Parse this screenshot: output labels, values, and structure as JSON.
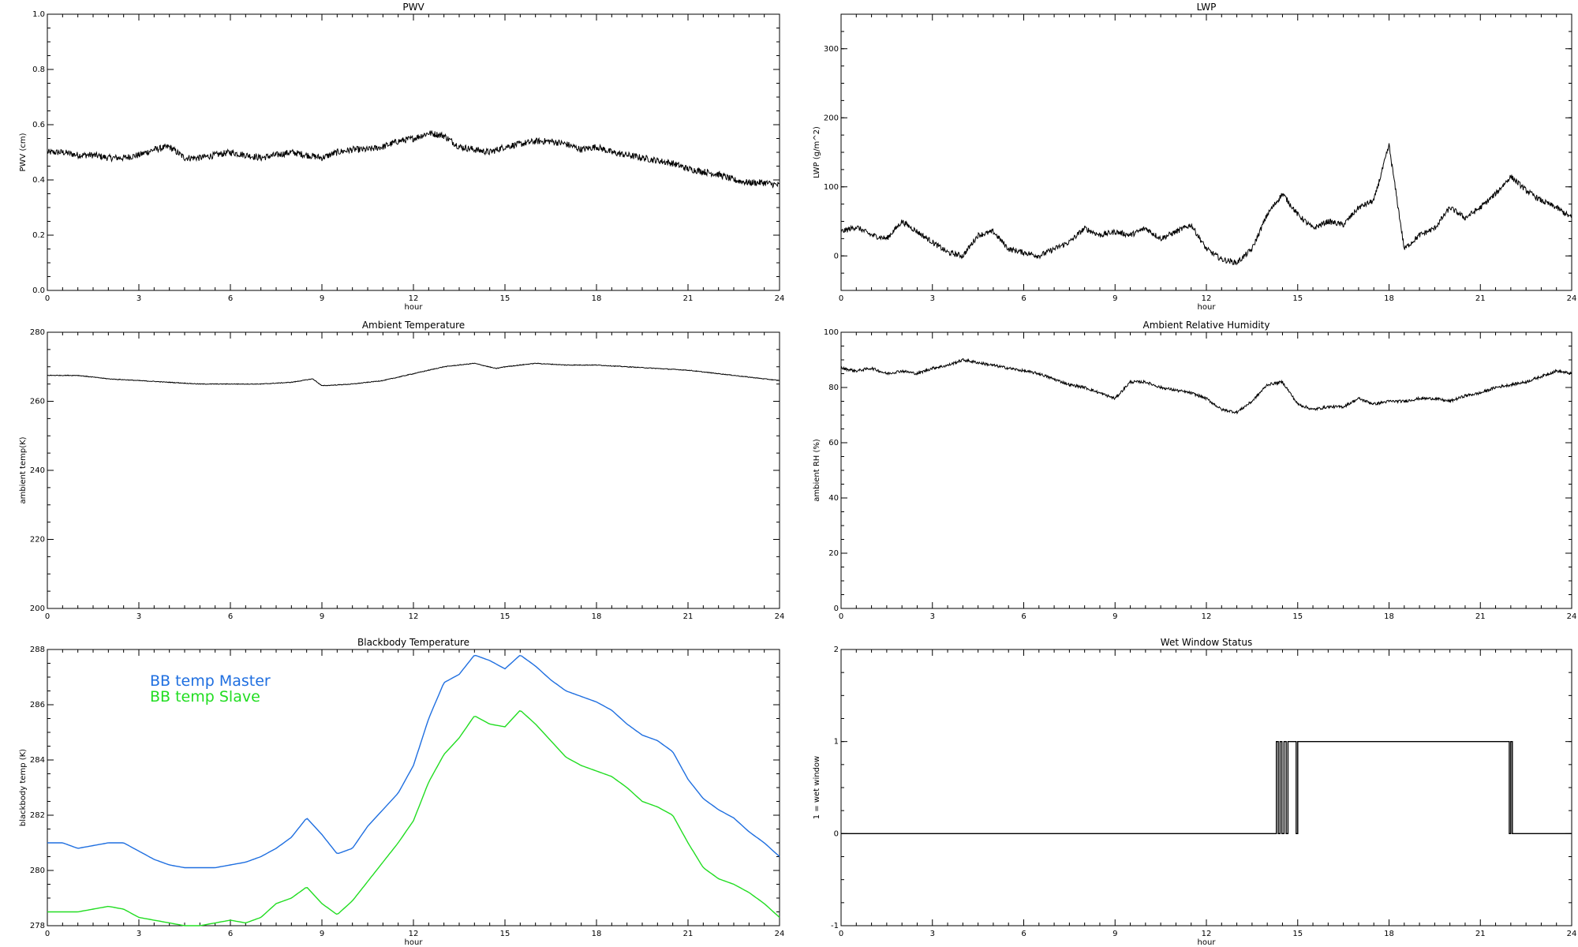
{
  "chart_data": [
    {
      "type": "line",
      "title": "PWV",
      "xlabel": "hour",
      "ylabel": "PWV (cm)",
      "xlim": [
        0,
        24
      ],
      "ylim": [
        0.0,
        1.0
      ],
      "xticks": [
        "0",
        "3",
        "6",
        "9",
        "12",
        "15",
        "18",
        "21",
        "24"
      ],
      "yticks": [
        "0.0",
        "0.2",
        "0.4",
        "0.6",
        "0.8",
        "1.0"
      ],
      "series": [
        {
          "color": "#000000",
          "noise": 0.012,
          "x": [
            0,
            0.5,
            1,
            1.5,
            2,
            2.5,
            3,
            3.5,
            4,
            4.5,
            5,
            5.5,
            6,
            6.5,
            7,
            7.5,
            8,
            8.5,
            9,
            9.5,
            10,
            10.5,
            11,
            11.5,
            12,
            12.5,
            13,
            13.5,
            14,
            14.5,
            15,
            15.5,
            16,
            16.5,
            17,
            17.5,
            18,
            18.5,
            19,
            19.5,
            20,
            20.5,
            21,
            21.5,
            22,
            22.5,
            23,
            23.5,
            24
          ],
          "y": [
            0.5,
            0.5,
            0.49,
            0.49,
            0.48,
            0.48,
            0.49,
            0.51,
            0.52,
            0.48,
            0.48,
            0.49,
            0.5,
            0.49,
            0.48,
            0.49,
            0.5,
            0.49,
            0.48,
            0.5,
            0.51,
            0.51,
            0.52,
            0.54,
            0.55,
            0.57,
            0.56,
            0.52,
            0.51,
            0.5,
            0.52,
            0.53,
            0.54,
            0.54,
            0.53,
            0.51,
            0.52,
            0.5,
            0.49,
            0.48,
            0.47,
            0.46,
            0.44,
            0.43,
            0.42,
            0.4,
            0.39,
            0.39,
            0.38
          ]
        }
      ]
    },
    {
      "type": "line",
      "title": "LWP",
      "xlabel": "hour",
      "ylabel": "LWP (g/m^2)",
      "xlim": [
        0,
        24
      ],
      "ylim": [
        -50,
        350
      ],
      "xticks": [
        "0",
        "3",
        "6",
        "9",
        "12",
        "15",
        "18",
        "21",
        "24"
      ],
      "yticks": [
        "0",
        "100",
        "200",
        "300"
      ],
      "series": [
        {
          "color": "#000000",
          "noise": 4,
          "x": [
            0,
            0.5,
            1,
            1.5,
            2,
            2.5,
            3,
            3.5,
            4,
            4.5,
            5,
            5.5,
            6,
            6.5,
            7,
            7.5,
            8,
            8.5,
            9,
            9.5,
            10,
            10.5,
            11,
            11.5,
            12,
            12.5,
            13,
            13.5,
            14,
            14.5,
            15,
            15.5,
            16,
            16.5,
            17,
            17.5,
            18,
            18.5,
            19,
            19.5,
            20,
            20.5,
            21,
            21.5,
            22,
            22.5,
            23,
            23.5,
            24
          ],
          "y": [
            35,
            42,
            30,
            25,
            50,
            35,
            20,
            5,
            0,
            30,
            35,
            10,
            5,
            0,
            10,
            20,
            40,
            30,
            35,
            30,
            40,
            25,
            35,
            45,
            10,
            -5,
            -10,
            10,
            60,
            90,
            60,
            40,
            50,
            45,
            70,
            80,
            160,
            10,
            30,
            40,
            70,
            55,
            70,
            90,
            115,
            95,
            80,
            70,
            55
          ]
        }
      ]
    },
    {
      "type": "line",
      "title": "Ambient Temperature",
      "xlabel": "",
      "ylabel": "ambient temp(K)",
      "xlim": [
        0,
        24
      ],
      "ylim": [
        200,
        280
      ],
      "xticks": [
        "0",
        "3",
        "6",
        "9",
        "12",
        "15",
        "18",
        "21",
        "24"
      ],
      "yticks": [
        "200",
        "220",
        "240",
        "260",
        "280"
      ],
      "series": [
        {
          "color": "#000000",
          "noise": 0.1,
          "x": [
            0,
            1,
            2,
            3,
            4,
            5,
            6,
            7,
            8,
            8.7,
            9,
            10,
            11,
            12,
            13,
            14,
            14.7,
            15,
            16,
            17,
            18,
            19,
            20,
            21,
            22,
            23,
            24
          ],
          "y": [
            267.5,
            267.5,
            266.5,
            266,
            265.5,
            265,
            265,
            265,
            265.5,
            266.5,
            264.5,
            265,
            266,
            268,
            270,
            271,
            269.5,
            270,
            271,
            270.5,
            270.5,
            270,
            269.5,
            269,
            268,
            267,
            266
          ]
        }
      ]
    },
    {
      "type": "line",
      "title": "Ambient Relative Humidity",
      "xlabel": "",
      "ylabel": "ambient RH (%)",
      "xlim": [
        0,
        24
      ],
      "ylim": [
        0,
        100
      ],
      "xticks": [
        "0",
        "3",
        "6",
        "9",
        "12",
        "15",
        "18",
        "21",
        "24"
      ],
      "yticks": [
        "0",
        "20",
        "40",
        "60",
        "80",
        "100"
      ],
      "series": [
        {
          "color": "#000000",
          "noise": 0.5,
          "x": [
            0,
            0.5,
            1,
            1.5,
            2,
            2.5,
            3,
            3.5,
            4,
            4.5,
            5,
            5.5,
            6,
            6.5,
            7,
            7.5,
            8,
            8.5,
            9,
            9.5,
            10,
            10.5,
            11,
            11.5,
            12,
            12.5,
            13,
            13.5,
            14,
            14.5,
            15,
            15.5,
            16,
            16.5,
            17,
            17.5,
            18,
            18.5,
            19,
            19.5,
            20,
            20.5,
            21,
            21.5,
            22,
            22.5,
            23,
            23.5,
            24
          ],
          "y": [
            87,
            86,
            87,
            85,
            86,
            85,
            87,
            88,
            90,
            89,
            88,
            87,
            86,
            85,
            83,
            81,
            80,
            78,
            76,
            82,
            82,
            80,
            79,
            78,
            76,
            72,
            71,
            75,
            81,
            82,
            74,
            72,
            73,
            73,
            76,
            74,
            75,
            75,
            76,
            76,
            75,
            77,
            78,
            80,
            81,
            82,
            84,
            86,
            85
          ]
        }
      ]
    },
    {
      "type": "line",
      "title": "Blackbody Temperature",
      "xlabel": "hour",
      "ylabel": "blackbody temp (K)",
      "xlim": [
        0,
        24
      ],
      "ylim": [
        278,
        288
      ],
      "xticks": [
        "0",
        "3",
        "6",
        "9",
        "12",
        "15",
        "18",
        "21",
        "24"
      ],
      "yticks": [
        "278",
        "280",
        "282",
        "284",
        "286",
        "288"
      ],
      "legend_position": "top-left",
      "series": [
        {
          "name": "BB temp Master",
          "color": "#1f6fe0",
          "noise": 0,
          "x": [
            0,
            0.5,
            1,
            1.5,
            2,
            2.5,
            3,
            3.5,
            4,
            4.5,
            5,
            5.5,
            6,
            6.5,
            7,
            7.5,
            8,
            8.5,
            9,
            9.5,
            10,
            10.5,
            11,
            11.5,
            12,
            12.5,
            13,
            13.5,
            14,
            14.5,
            15,
            15.5,
            16,
            16.5,
            17,
            17.5,
            18,
            18.5,
            19,
            19.5,
            20,
            20.5,
            21,
            21.5,
            22,
            22.5,
            23,
            23.5,
            24
          ],
          "y": [
            281,
            281,
            280.8,
            280.9,
            281,
            281,
            280.7,
            280.4,
            280.2,
            280.1,
            280.1,
            280.1,
            280.2,
            280.3,
            280.5,
            280.8,
            281.2,
            281.9,
            281.3,
            280.6,
            280.8,
            281.6,
            282.2,
            282.8,
            283.8,
            285.5,
            286.8,
            287.1,
            287.8,
            287.6,
            287.3,
            287.8,
            287.4,
            286.9,
            286.5,
            286.3,
            286.1,
            285.8,
            285.3,
            284.9,
            284.7,
            284.3,
            283.3,
            282.6,
            282.2,
            281.9,
            281.4,
            281,
            280.5
          ]
        },
        {
          "name": "BB temp Slave",
          "color": "#22dd22",
          "noise": 0,
          "x": [
            0,
            0.5,
            1,
            1.5,
            2,
            2.5,
            3,
            3.5,
            4,
            4.5,
            5,
            5.5,
            6,
            6.5,
            7,
            7.5,
            8,
            8.5,
            9,
            9.5,
            10,
            10.5,
            11,
            11.5,
            12,
            12.5,
            13,
            13.5,
            14,
            14.5,
            15,
            15.5,
            16,
            16.5,
            17,
            17.5,
            18,
            18.5,
            19,
            19.5,
            20,
            20.5,
            21,
            21.5,
            22,
            22.5,
            23,
            23.5,
            24
          ],
          "y": [
            278.5,
            278.5,
            278.5,
            278.6,
            278.7,
            278.6,
            278.3,
            278.2,
            278.1,
            278.0,
            278.0,
            278.1,
            278.2,
            278.1,
            278.3,
            278.8,
            279.0,
            279.4,
            278.8,
            278.4,
            278.9,
            279.6,
            280.3,
            281.0,
            281.8,
            283.2,
            284.2,
            284.8,
            285.6,
            285.3,
            285.2,
            285.8,
            285.3,
            284.7,
            284.1,
            283.8,
            283.6,
            283.4,
            283.0,
            282.5,
            282.3,
            282.0,
            281.0,
            280.1,
            279.7,
            279.5,
            279.2,
            278.8,
            278.3
          ]
        }
      ]
    },
    {
      "type": "line",
      "title": "Wet Window Status",
      "xlabel": "hour",
      "ylabel": "1 = wet window",
      "xlim": [
        0,
        24
      ],
      "ylim": [
        -1,
        2
      ],
      "xticks": [
        "0",
        "3",
        "6",
        "9",
        "12",
        "15",
        "18",
        "21",
        "24"
      ],
      "yticks": [
        "-1",
        "0",
        "1",
        "2"
      ],
      "series": [
        {
          "color": "#000000",
          "step": true,
          "noise": 0,
          "x": [
            0,
            14.3,
            14.3,
            14.36,
            14.36,
            14.42,
            14.42,
            14.48,
            14.48,
            14.55,
            14.55,
            14.62,
            14.62,
            14.68,
            14.68,
            14.95,
            14.95,
            15.0,
            15.0,
            21.95,
            21.95,
            22.0,
            22.0,
            22.05,
            22.05,
            24
          ],
          "y": [
            0,
            0,
            1,
            1,
            0,
            0,
            1,
            1,
            0,
            0,
            1,
            1,
            0,
            0,
            1,
            1,
            0,
            0,
            1,
            1,
            0,
            0,
            1,
            1,
            0,
            0
          ]
        }
      ]
    }
  ]
}
